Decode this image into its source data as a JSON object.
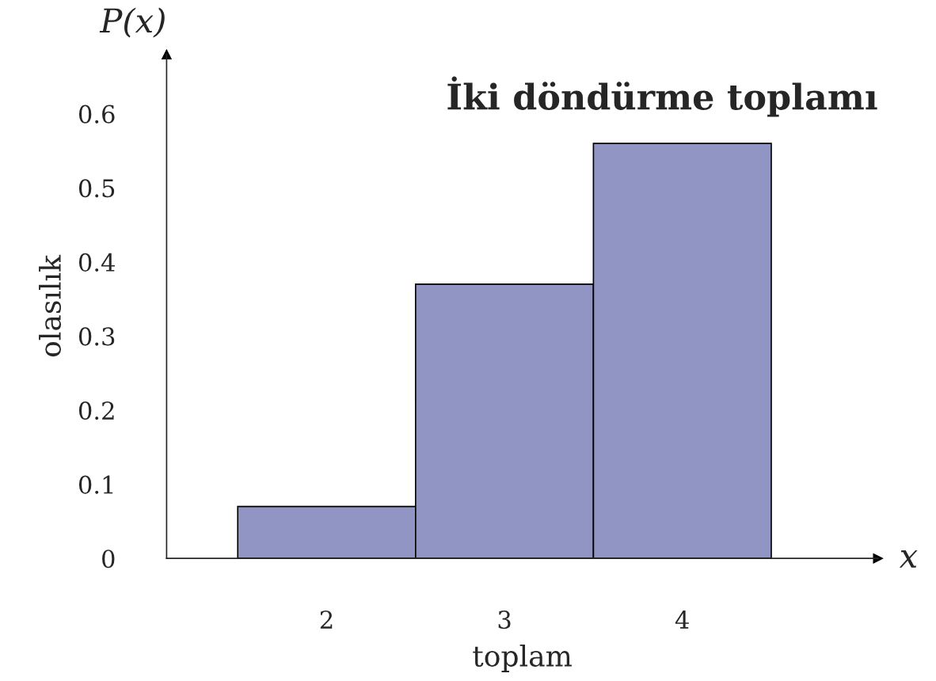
{
  "chart_data": {
    "type": "histogram",
    "title": "İki döndürme toplamı",
    "xlabel": "toplam",
    "ylabel": "olasılık",
    "annotations": [
      "P(x)",
      "x"
    ],
    "bins": [
      1.5,
      2.5,
      3.5,
      4.5
    ],
    "values": [
      0.07,
      0.37,
      0.56
    ],
    "color": "#9195c3",
    "xlim": [
      1.1,
      5.1
    ],
    "xticks": [
      2,
      3,
      4
    ],
    "ylim": [
      0,
      0.68
    ],
    "yticks": [
      0,
      0.1,
      0.2,
      0.3,
      0.4,
      0.5,
      0.6
    ],
    "grid": false,
    "legend": false
  }
}
